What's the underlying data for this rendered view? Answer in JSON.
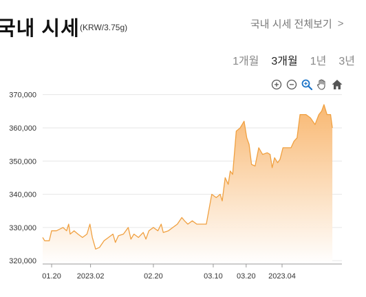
{
  "header": {
    "title": "국내 시세",
    "unit": "(KRW/3.75g)",
    "more_label": "국내 시세 전체보기",
    "more_chevron": ">"
  },
  "tabs": [
    {
      "label": "1개월",
      "active": false
    },
    {
      "label": "3개월",
      "active": true
    },
    {
      "label": "1년",
      "active": false
    },
    {
      "label": "3년",
      "active": false
    }
  ],
  "toolbar": [
    "zoom-in-icon",
    "zoom-out-icon",
    "zoom-select-icon",
    "pan-hand-icon",
    "home-icon"
  ],
  "colors": {
    "line": "#f0a040",
    "fill_top": "#f8b46a",
    "fill_bottom": "#ffffff",
    "grid": "#e6e6e6"
  },
  "chart_data": {
    "type": "area",
    "ylim": [
      319000,
      372000
    ],
    "yticks": [
      {
        "value": 320000,
        "label": "320,000"
      },
      {
        "value": 330000,
        "label": "330,000"
      },
      {
        "value": 340000,
        "label": "340,000"
      },
      {
        "value": 350000,
        "label": "350,000"
      },
      {
        "value": 360000,
        "label": "360,000"
      },
      {
        "value": 370000,
        "label": "370,000"
      }
    ],
    "xlim": [
      0,
      100
    ],
    "xticks": [
      {
        "pos": 3,
        "label": "01.20"
      },
      {
        "pos": 16,
        "label": "2023.02"
      },
      {
        "pos": 37,
        "label": "02.20"
      },
      {
        "pos": 57,
        "label": "03.10"
      },
      {
        "pos": 68,
        "label": "03.20"
      },
      {
        "pos": 80,
        "label": "2023.04"
      }
    ],
    "grid": true,
    "series": [
      {
        "points": [
          [
            0,
            327000
          ],
          [
            0.7,
            326000
          ],
          [
            2.2,
            326000
          ],
          [
            3,
            329000
          ],
          [
            4.6,
            329000
          ],
          [
            6.8,
            330000
          ],
          [
            8,
            329000
          ],
          [
            8.7,
            331000
          ],
          [
            9.2,
            328000
          ],
          [
            10.5,
            329000
          ],
          [
            11.8,
            328000
          ],
          [
            13.3,
            327000
          ],
          [
            14.8,
            328000
          ],
          [
            15.8,
            331000
          ],
          [
            16.6,
            327000
          ],
          [
            17.7,
            323500
          ],
          [
            19,
            324000
          ],
          [
            20.5,
            326000
          ],
          [
            22,
            327000
          ],
          [
            23.5,
            328000
          ],
          [
            24.3,
            325500
          ],
          [
            25.3,
            327500
          ],
          [
            27,
            328000
          ],
          [
            28.6,
            330000
          ],
          [
            29.5,
            326500
          ],
          [
            30.5,
            328000
          ],
          [
            32,
            327000
          ],
          [
            33.6,
            328500
          ],
          [
            34.5,
            326500
          ],
          [
            35.5,
            329000
          ],
          [
            37,
            330000
          ],
          [
            38.5,
            329000
          ],
          [
            39.6,
            331000
          ],
          [
            40.3,
            328500
          ],
          [
            42,
            329000
          ],
          [
            43.5,
            330000
          ],
          [
            45,
            331000
          ],
          [
            46.5,
            333000
          ],
          [
            47.4,
            332000
          ],
          [
            48.5,
            331000
          ],
          [
            50,
            332000
          ],
          [
            51.5,
            331000
          ],
          [
            53,
            331000
          ],
          [
            54.7,
            331000
          ],
          [
            55.5,
            335000
          ],
          [
            56.5,
            340000
          ],
          [
            58,
            339000
          ],
          [
            59.3,
            340000
          ],
          [
            60,
            338000
          ],
          [
            61,
            345000
          ],
          [
            62,
            343000
          ],
          [
            62.7,
            347000
          ],
          [
            63.5,
            346000
          ],
          [
            64.7,
            359000
          ],
          [
            66,
            360000
          ],
          [
            67.3,
            362000
          ],
          [
            68.2,
            357000
          ],
          [
            69,
            355000
          ],
          [
            69.8,
            349000
          ],
          [
            71,
            348500
          ],
          [
            72.2,
            354000
          ],
          [
            73.5,
            352000
          ],
          [
            75,
            352500
          ],
          [
            76,
            352000
          ],
          [
            76.7,
            348000
          ],
          [
            77.5,
            351000
          ],
          [
            78.5,
            349500
          ],
          [
            79.3,
            350500
          ],
          [
            80.3,
            354000
          ],
          [
            82,
            354000
          ],
          [
            83,
            354000
          ],
          [
            84,
            356000
          ],
          [
            85,
            357000
          ],
          [
            86,
            364000
          ],
          [
            88,
            364000
          ],
          [
            89.5,
            363000
          ],
          [
            91,
            361000
          ],
          [
            92.3,
            364000
          ],
          [
            93.2,
            365000
          ],
          [
            94,
            367000
          ],
          [
            95,
            364000
          ],
          [
            96.2,
            364000
          ],
          [
            96.8,
            360000
          ]
        ]
      }
    ]
  }
}
